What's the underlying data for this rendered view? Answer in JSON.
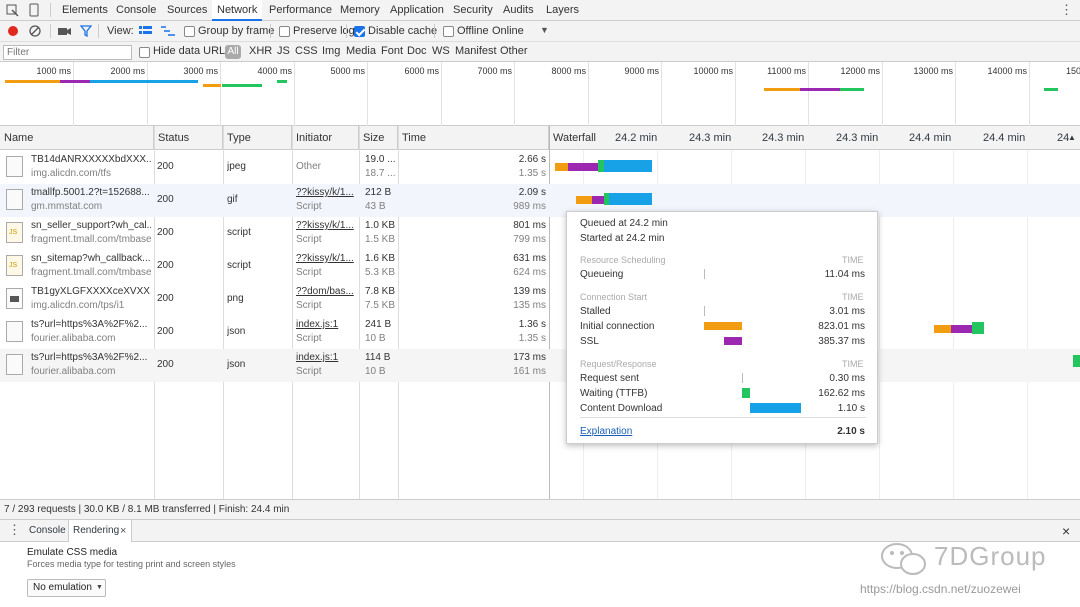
{
  "tabs": [
    "Elements",
    "Console",
    "Sources",
    "Network",
    "Performance",
    "Memory",
    "Application",
    "Security",
    "Audits",
    "Layers"
  ],
  "toolbar": {
    "view": "View:",
    "group_by_frame": "Group by frame",
    "preserve_log": "Preserve log",
    "disable_cache": "Disable cache",
    "offline": "Offline",
    "throttle": "Online"
  },
  "filter": {
    "placeholder": "Filter",
    "hide_data_urls": "Hide data URLs",
    "types": [
      "All",
      "XHR",
      "JS",
      "CSS",
      "Img",
      "Media",
      "Font",
      "Doc",
      "WS",
      "Manifest",
      "Other"
    ]
  },
  "overview_ticks": [
    "1000 ms",
    "2000 ms",
    "3000 ms",
    "4000 ms",
    "5000 ms",
    "6000 ms",
    "7000 ms",
    "8000 ms",
    "9000 ms",
    "10000 ms",
    "11000 ms",
    "12000 ms",
    "13000 ms",
    "14000 ms",
    "150"
  ],
  "columns": {
    "name": "Name",
    "status": "Status",
    "type": "Type",
    "initiator": "Initiator",
    "size": "Size",
    "time": "Time",
    "waterfall": "Waterfall"
  },
  "waterfall_ticks": [
    "24.2 min",
    "24.3 min",
    "24.3 min",
    "24.3 min",
    "24.4 min",
    "24.4 min",
    "24"
  ],
  "rows": [
    {
      "name": "TB14dANRXXXXXbdXXX...",
      "host": "img.alicdn.com/tfs",
      "status": "200",
      "type": "jpeg",
      "initiator": "Other",
      "initiator2": "",
      "size": "19.0 ...",
      "size2": "18.7 ...",
      "time": "2.66 s",
      "time2": "1.35 s"
    },
    {
      "name": "tmallfp.5001.2?t=152688...",
      "host": "gm.mmstat.com",
      "status": "200",
      "type": "gif",
      "initiator": "??kissy/k/1...",
      "initiator2": "Script",
      "size": "212 B",
      "size2": "43 B",
      "time": "2.09 s",
      "time2": "989 ms"
    },
    {
      "name": "sn_seller_support?wh_cal...",
      "host": "fragment.tmall.com/tmbase",
      "status": "200",
      "type": "script",
      "initiator": "??kissy/k/1...",
      "initiator2": "Script",
      "size": "1.0 KB",
      "size2": "1.5 KB",
      "time": "801 ms",
      "time2": "799 ms"
    },
    {
      "name": "sn_sitemap?wh_callback...",
      "host": "fragment.tmall.com/tmbase",
      "status": "200",
      "type": "script",
      "initiator": "??kissy/k/1...",
      "initiator2": "Script",
      "size": "1.6 KB",
      "size2": "5.3 KB",
      "time": "631 ms",
      "time2": "624 ms"
    },
    {
      "name": "TB1gyXLGFXXXXceXVXX...",
      "host": "img.alicdn.com/tps/i1",
      "status": "200",
      "type": "png",
      "initiator": "??dom/bas...",
      "initiator2": "Script",
      "size": "7.8 KB",
      "size2": "7.5 KB",
      "time": "139 ms",
      "time2": "135 ms"
    },
    {
      "name": "ts?url=https%3A%2F%2...",
      "host": "fourier.alibaba.com",
      "status": "200",
      "type": "json",
      "initiator": "index.js:1",
      "initiator2": "Script",
      "size": "241 B",
      "size2": "10 B",
      "time": "1.36 s",
      "time2": "1.35 s"
    },
    {
      "name": "ts?url=https%3A%2F%2...",
      "host": "fourier.alibaba.com",
      "status": "200",
      "type": "json",
      "initiator": "index.js:1",
      "initiator2": "Script",
      "size": "114 B",
      "size2": "10 B",
      "time": "173 ms",
      "time2": "161 ms"
    }
  ],
  "popup": {
    "queued": "Queued at 24.2 min",
    "started": "Started at 24.2 min",
    "h1": "Resource Scheduling",
    "h2": "Connection Start",
    "h3": "Request/Response",
    "time_hdr": "TIME",
    "items": [
      {
        "label": "Queueing",
        "value": "11.04 ms"
      },
      {
        "label": "Stalled",
        "value": "3.01 ms"
      },
      {
        "label": "Initial connection",
        "value": "823.01 ms"
      },
      {
        "label": "SSL",
        "value": "385.37 ms"
      },
      {
        "label": "Request sent",
        "value": "0.30 ms"
      },
      {
        "label": "Waiting (TTFB)",
        "value": "162.62 ms"
      },
      {
        "label": "Content Download",
        "value": "1.10 s"
      }
    ],
    "explanation": "Explanation",
    "total": "2.10 s"
  },
  "status_bar": "7 / 293 requests | 30.0 KB / 8.1 MB transferred | Finish: 24.4 min",
  "drawer": {
    "tabs": [
      "Console",
      "Rendering"
    ],
    "emulate_title": "Emulate CSS media",
    "emulate_desc": "Forces media type for testing print and screen styles",
    "select_value": "No emulation"
  },
  "watermark": {
    "brand": "7DGroup",
    "url": "https://blog.csdn.net/zuozewei"
  },
  "colors": {
    "queue": "#f29c12",
    "connect": "#f29c12",
    "ssl": "#9c27b0",
    "ttfb": "#22c55e",
    "download": "#17a2e8",
    "accent": "#1a73e8"
  }
}
